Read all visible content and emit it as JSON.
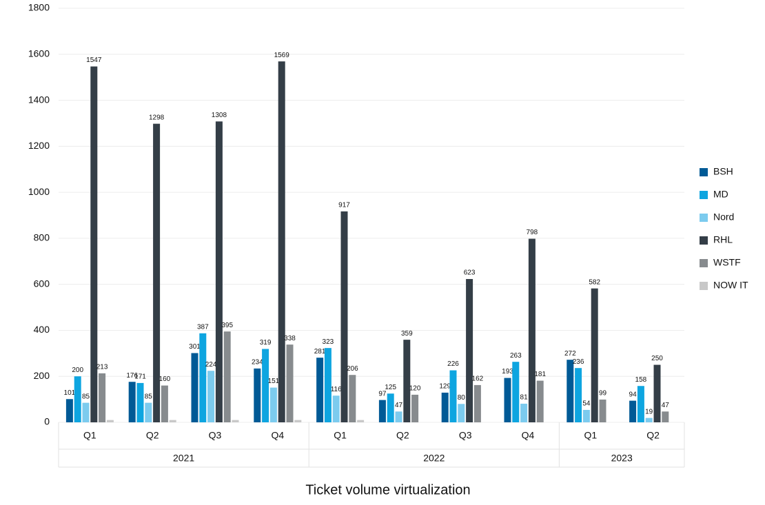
{
  "chart_data": {
    "type": "bar",
    "title": "Ticket volume virtualization",
    "category_groups": [
      {
        "label": "2021",
        "categories": [
          "Q1",
          "Q2",
          "Q3",
          "Q4"
        ]
      },
      {
        "label": "2022",
        "categories": [
          "Q1",
          "Q2",
          "Q3",
          "Q4"
        ]
      },
      {
        "label": "2023",
        "categories": [
          "Q1",
          "Q2"
        ]
      }
    ],
    "series": [
      {
        "name": "BSH",
        "color": "#005a96",
        "values": [
          101,
          176,
          301,
          234,
          281,
          97,
          129,
          193,
          272,
          94
        ]
      },
      {
        "name": "MD",
        "color": "#0ea5e0",
        "values": [
          200,
          171,
          387,
          319,
          323,
          125,
          226,
          263,
          236,
          158
        ]
      },
      {
        "name": "Nord",
        "color": "#7ccbee",
        "values": [
          85,
          85,
          224,
          151,
          116,
          47,
          80,
          81,
          54,
          19
        ]
      },
      {
        "name": "RHL",
        "color": "#343e47",
        "values": [
          1547,
          1298,
          1308,
          1569,
          917,
          359,
          623,
          798,
          582,
          250
        ]
      },
      {
        "name": "WSTF",
        "color": "#878b8e",
        "values": [
          213,
          160,
          395,
          338,
          206,
          120,
          162,
          181,
          99,
          47
        ]
      },
      {
        "name": "NOW IT",
        "color": "#c8c8c8",
        "show_labels": false,
        "values": [
          10,
          10,
          10,
          10,
          10,
          null,
          null,
          null,
          null,
          null
        ]
      }
    ],
    "ylim": [
      0,
      1800
    ],
    "yticks": [
      0,
      200,
      400,
      600,
      800,
      1000,
      1200,
      1400,
      1600,
      1800
    ],
    "grid": true
  }
}
